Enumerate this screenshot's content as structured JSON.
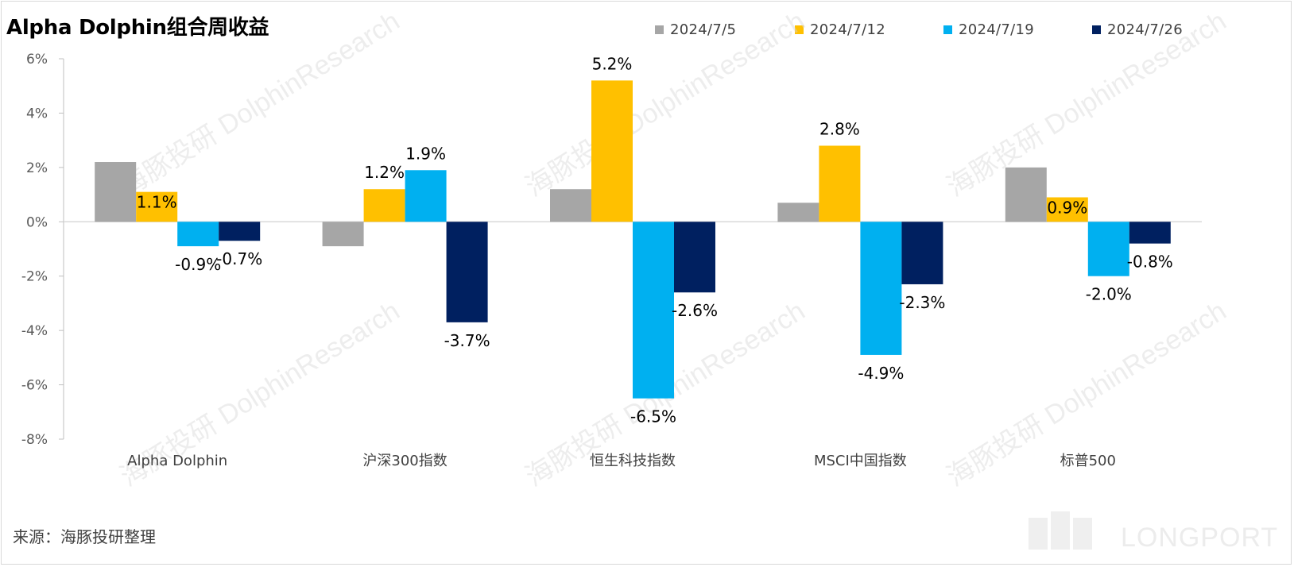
{
  "title": "Alpha Dolphin组合周收益",
  "source": "来源：海豚投研整理",
  "watermark": {
    "cn": "海豚投研",
    "en": "DolphinResearch"
  },
  "brand": "LONGPORT",
  "legend": [
    {
      "name": "2024/7/5",
      "color": "#a6a6a6"
    },
    {
      "name": "2024/7/12",
      "color": "#ffc000"
    },
    {
      "name": "2024/7/19",
      "color": "#00b0f0"
    },
    {
      "name": "2024/7/26",
      "color": "#002060"
    }
  ],
  "chart_data": {
    "type": "bar",
    "title": "Alpha Dolphin组合周收益",
    "xlabel": "",
    "ylabel": "",
    "categories": [
      "Alpha Dolphin",
      "沪深300指数",
      "恒生科技指数",
      "MSCI中国指数",
      "标普500"
    ],
    "series": [
      {
        "name": "2024/7/5",
        "color": "#a6a6a6",
        "values": [
          2.2,
          -0.9,
          1.2,
          0.7,
          2.0
        ],
        "labels": [
          null,
          null,
          null,
          null,
          null
        ]
      },
      {
        "name": "2024/7/12",
        "color": "#ffc000",
        "values": [
          1.1,
          1.2,
          5.2,
          2.8,
          0.9
        ],
        "labels": [
          "1.1%",
          "1.2%",
          "5.2%",
          "2.8%",
          "0.9%"
        ]
      },
      {
        "name": "2024/7/19",
        "color": "#00b0f0",
        "values": [
          -0.9,
          1.9,
          -6.5,
          -4.9,
          -2.0
        ],
        "labels": [
          "-0.9%",
          "1.9%",
          "-6.5%",
          "-4.9%",
          "-2.0%"
        ]
      },
      {
        "name": "2024/7/26",
        "color": "#002060",
        "values": [
          -0.7,
          -3.7,
          -2.6,
          -2.3,
          -0.8
        ],
        "labels": [
          "-0.7%",
          "-3.7%",
          "-2.6%",
          "-2.3%",
          "-0.8%"
        ]
      }
    ],
    "ylim": [
      -8,
      6
    ],
    "yticks": [
      6,
      4,
      2,
      0,
      -2,
      -4,
      -6,
      -8
    ],
    "ytick_labels": [
      "6%",
      "4%",
      "2%",
      "0%",
      "-2%",
      "-4%",
      "-6%",
      "-8%"
    ],
    "legend_position": "top-right",
    "grid": false
  }
}
